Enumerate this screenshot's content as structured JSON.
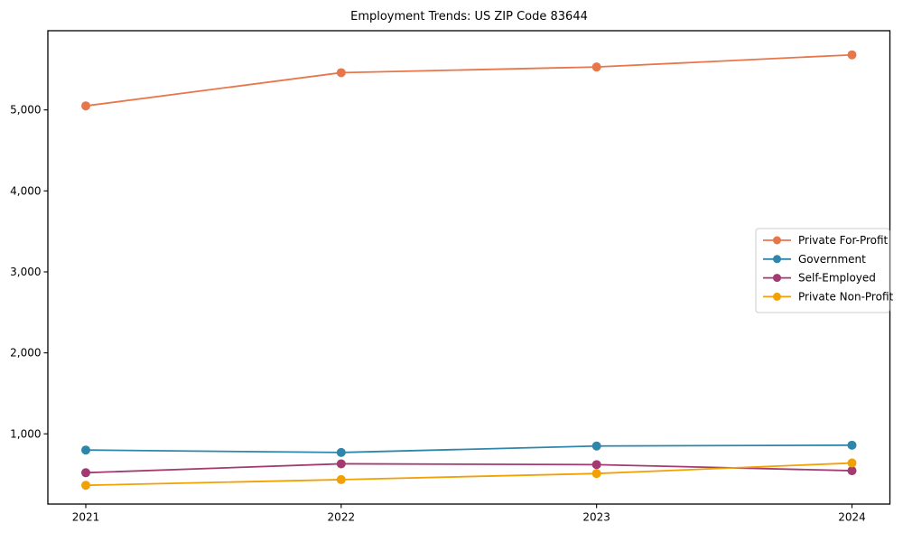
{
  "chart_data": {
    "type": "line",
    "title": "Employment Trends: US ZIP Code 83644",
    "xlabel": "",
    "ylabel": "",
    "categories": [
      "2021",
      "2022",
      "2023",
      "2024"
    ],
    "series": [
      {
        "name": "Private For-Profit",
        "color": "#E8764B",
        "values": [
          5050,
          5460,
          5530,
          5680
        ]
      },
      {
        "name": "Government",
        "color": "#2E86AB",
        "values": [
          800,
          770,
          850,
          860
        ]
      },
      {
        "name": "Self-Employed",
        "color": "#A23B72",
        "values": [
          520,
          630,
          620,
          545
        ]
      },
      {
        "name": "Private Non-Profit",
        "color": "#F2A104",
        "values": [
          365,
          435,
          510,
          640
        ]
      }
    ],
    "yticks": [
      {
        "value": 1000,
        "label": "1,000"
      },
      {
        "value": 2000,
        "label": "2,000"
      },
      {
        "value": 3000,
        "label": "3,000"
      },
      {
        "value": 4000,
        "label": "4,000"
      },
      {
        "value": 5000,
        "label": "5,000"
      }
    ],
    "ylim": [
      133,
      5978
    ],
    "grid": false,
    "legend_position": "center right",
    "axis_color": "#000000",
    "legend_border_color": "#cccccc",
    "background": "#ffffff"
  }
}
